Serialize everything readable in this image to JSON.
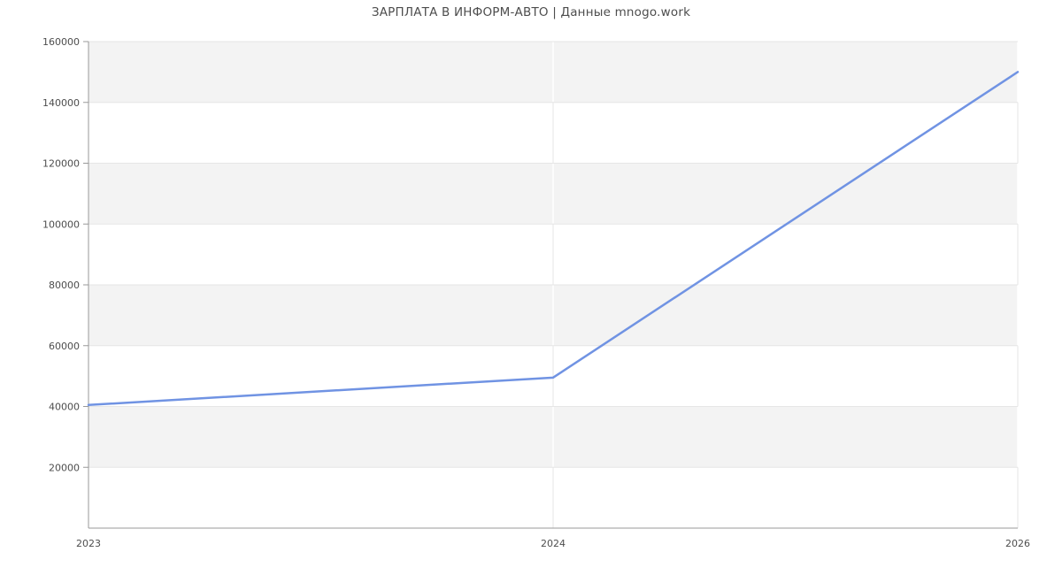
{
  "chart_data": {
    "type": "line",
    "title": "ЗАРПЛАТА В ИНФОРМ-АВТО | Данные mnogo.work",
    "categories": [
      "2023",
      "2024",
      "2026"
    ],
    "values": [
      40500,
      49500,
      150000
    ],
    "xlabel": "",
    "ylabel": "",
    "x_axis_type": "category",
    "ylim": [
      0,
      160000
    ],
    "yticks": [
      20000,
      40000,
      60000,
      80000,
      100000,
      120000,
      140000,
      160000
    ],
    "grid": true,
    "legend": false,
    "band_fill_pattern": "alternating horizontal bands, gray topmost",
    "colors": {
      "line": "#7093e3",
      "band": "#f3f3f3",
      "gridline": "#e6e6e6",
      "axis": "#999999",
      "text": "#4d4d4d",
      "background": "#ffffff"
    }
  }
}
